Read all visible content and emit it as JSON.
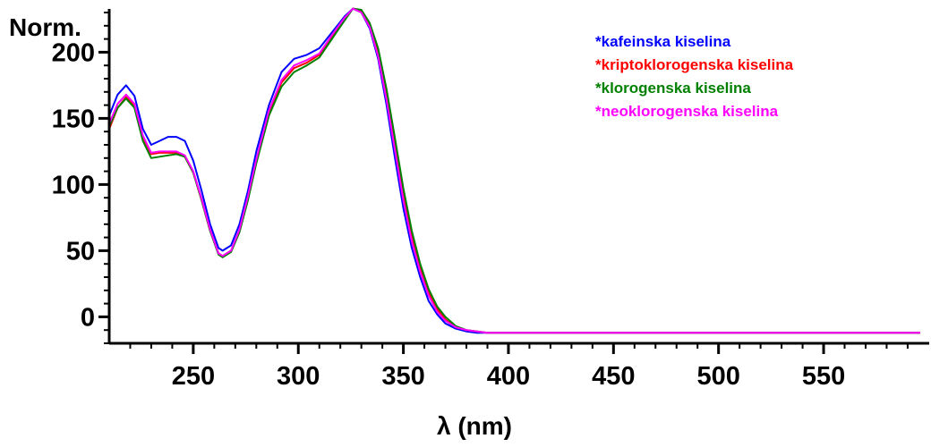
{
  "chart_data": {
    "type": "line",
    "ylabel": "Norm.",
    "xlabel": "λ (nm)",
    "xlim": [
      210,
      596
    ],
    "ylim": [
      -20,
      230
    ],
    "x_ticks": [
      250,
      300,
      350,
      400,
      450,
      500,
      550
    ],
    "y_ticks": [
      0,
      50,
      100,
      150,
      200
    ],
    "legend_position": "top-right",
    "legend_prefix": "*",
    "series": [
      {
        "name": "kafeinska kiselina",
        "color": "#0000ff",
        "points": [
          [
            210,
            152
          ],
          [
            214,
            168
          ],
          [
            218,
            175
          ],
          [
            222,
            167
          ],
          [
            226,
            142
          ],
          [
            230,
            130
          ],
          [
            234,
            133
          ],
          [
            238,
            136
          ],
          [
            242,
            136
          ],
          [
            246,
            133
          ],
          [
            250,
            118
          ],
          [
            254,
            95
          ],
          [
            258,
            70
          ],
          [
            262,
            52
          ],
          [
            264,
            50
          ],
          [
            268,
            54
          ],
          [
            272,
            70
          ],
          [
            276,
            95
          ],
          [
            280,
            125
          ],
          [
            286,
            160
          ],
          [
            292,
            185
          ],
          [
            298,
            195
          ],
          [
            304,
            198
          ],
          [
            310,
            203
          ],
          [
            316,
            215
          ],
          [
            322,
            227
          ],
          [
            326,
            233
          ],
          [
            330,
            230
          ],
          [
            334,
            218
          ],
          [
            338,
            195
          ],
          [
            342,
            160
          ],
          [
            346,
            120
          ],
          [
            350,
            82
          ],
          [
            354,
            52
          ],
          [
            358,
            30
          ],
          [
            362,
            12
          ],
          [
            366,
            2
          ],
          [
            370,
            -5
          ],
          [
            375,
            -9
          ],
          [
            380,
            -11
          ],
          [
            385,
            -12
          ],
          [
            390,
            -12
          ],
          [
            420,
            -12
          ],
          [
            500,
            -12
          ],
          [
            596,
            -12
          ]
        ]
      },
      {
        "name": "kriptoklorogenska kiselina",
        "color": "#ff0000",
        "points": [
          [
            210,
            142
          ],
          [
            214,
            158
          ],
          [
            218,
            166
          ],
          [
            222,
            160
          ],
          [
            226,
            136
          ],
          [
            230,
            123
          ],
          [
            234,
            124
          ],
          [
            238,
            124
          ],
          [
            242,
            124
          ],
          [
            246,
            121
          ],
          [
            250,
            109
          ],
          [
            254,
            88
          ],
          [
            258,
            65
          ],
          [
            262,
            48
          ],
          [
            264,
            46
          ],
          [
            268,
            50
          ],
          [
            272,
            65
          ],
          [
            276,
            90
          ],
          [
            280,
            118
          ],
          [
            286,
            155
          ],
          [
            292,
            177
          ],
          [
            298,
            188
          ],
          [
            304,
            192
          ],
          [
            310,
            198
          ],
          [
            316,
            212
          ],
          [
            322,
            225
          ],
          [
            326,
            233
          ],
          [
            330,
            231
          ],
          [
            334,
            221
          ],
          [
            338,
            200
          ],
          [
            342,
            168
          ],
          [
            346,
            130
          ],
          [
            350,
            92
          ],
          [
            354,
            60
          ],
          [
            358,
            37
          ],
          [
            362,
            18
          ],
          [
            366,
            6
          ],
          [
            370,
            -2
          ],
          [
            375,
            -8
          ],
          [
            380,
            -10
          ],
          [
            385,
            -11
          ],
          [
            390,
            -12
          ],
          [
            420,
            -12
          ],
          [
            500,
            -12
          ],
          [
            596,
            -12
          ]
        ]
      },
      {
        "name": "klorogenska kiselina",
        "color": "#008000",
        "points": [
          [
            210,
            144
          ],
          [
            214,
            158
          ],
          [
            218,
            165
          ],
          [
            222,
            158
          ],
          [
            226,
            133
          ],
          [
            230,
            120
          ],
          [
            234,
            121
          ],
          [
            238,
            122
          ],
          [
            242,
            123
          ],
          [
            246,
            121
          ],
          [
            250,
            109
          ],
          [
            254,
            88
          ],
          [
            258,
            65
          ],
          [
            262,
            47
          ],
          [
            264,
            45
          ],
          [
            268,
            49
          ],
          [
            272,
            64
          ],
          [
            276,
            88
          ],
          [
            280,
            116
          ],
          [
            286,
            152
          ],
          [
            292,
            174
          ],
          [
            298,
            185
          ],
          [
            304,
            190
          ],
          [
            310,
            196
          ],
          [
            316,
            210
          ],
          [
            322,
            224
          ],
          [
            326,
            233
          ],
          [
            330,
            232
          ],
          [
            334,
            222
          ],
          [
            338,
            203
          ],
          [
            342,
            172
          ],
          [
            346,
            135
          ],
          [
            350,
            97
          ],
          [
            354,
            65
          ],
          [
            358,
            40
          ],
          [
            362,
            21
          ],
          [
            366,
            8
          ],
          [
            370,
            0
          ],
          [
            375,
            -7
          ],
          [
            380,
            -10
          ],
          [
            385,
            -11
          ],
          [
            390,
            -12
          ],
          [
            420,
            -12
          ],
          [
            500,
            -12
          ],
          [
            596,
            -12
          ]
        ]
      },
      {
        "name": "neoklorogenska kiselina",
        "color": "#ff00ff",
        "points": [
          [
            210,
            146
          ],
          [
            214,
            161
          ],
          [
            218,
            168
          ],
          [
            222,
            161
          ],
          [
            226,
            137
          ],
          [
            230,
            124
          ],
          [
            234,
            125
          ],
          [
            238,
            125
          ],
          [
            242,
            125
          ],
          [
            246,
            122
          ],
          [
            250,
            110
          ],
          [
            254,
            89
          ],
          [
            258,
            66
          ],
          [
            262,
            48
          ],
          [
            264,
            46
          ],
          [
            268,
            50
          ],
          [
            272,
            66
          ],
          [
            276,
            91
          ],
          [
            280,
            119
          ],
          [
            286,
            156
          ],
          [
            292,
            179
          ],
          [
            298,
            190
          ],
          [
            304,
            194
          ],
          [
            310,
            199
          ],
          [
            316,
            213
          ],
          [
            322,
            226
          ],
          [
            326,
            233
          ],
          [
            330,
            230
          ],
          [
            334,
            219
          ],
          [
            338,
            197
          ],
          [
            342,
            164
          ],
          [
            346,
            126
          ],
          [
            350,
            88
          ],
          [
            354,
            57
          ],
          [
            358,
            34
          ],
          [
            362,
            16
          ],
          [
            366,
            4
          ],
          [
            370,
            -3
          ],
          [
            375,
            -8
          ],
          [
            380,
            -10
          ],
          [
            385,
            -11
          ],
          [
            390,
            -12
          ],
          [
            420,
            -12
          ],
          [
            500,
            -12
          ],
          [
            596,
            -12
          ]
        ]
      }
    ]
  }
}
